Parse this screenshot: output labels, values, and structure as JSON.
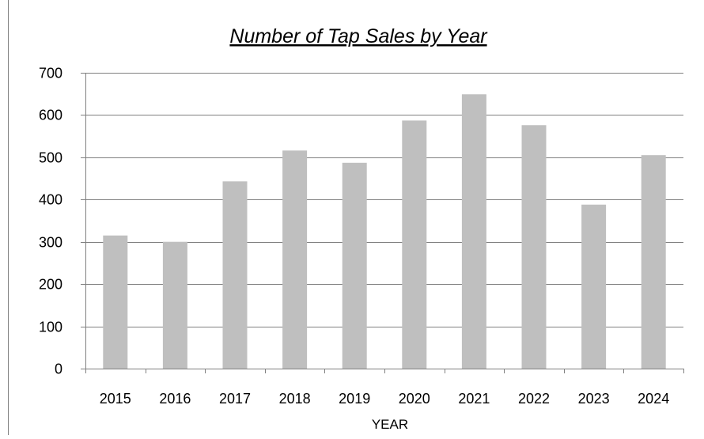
{
  "chart_data": {
    "type": "bar",
    "title": "Number of Tap Sales by Year",
    "xlabel": "YEAR",
    "ylabel": "",
    "categories": [
      "2015",
      "2016",
      "2017",
      "2018",
      "2019",
      "2020",
      "2021",
      "2022",
      "2023",
      "2024"
    ],
    "values": [
      315,
      300,
      443,
      516,
      487,
      587,
      649,
      576,
      388,
      505
    ],
    "ylim": [
      0,
      700
    ],
    "yticks": [
      "0",
      "100",
      "200",
      "300",
      "400",
      "500",
      "600",
      "700"
    ],
    "grid": true,
    "legend": "none",
    "bar_color": "#bfbfbf",
    "grid_color": "#808080",
    "frame_color": "#808080"
  }
}
